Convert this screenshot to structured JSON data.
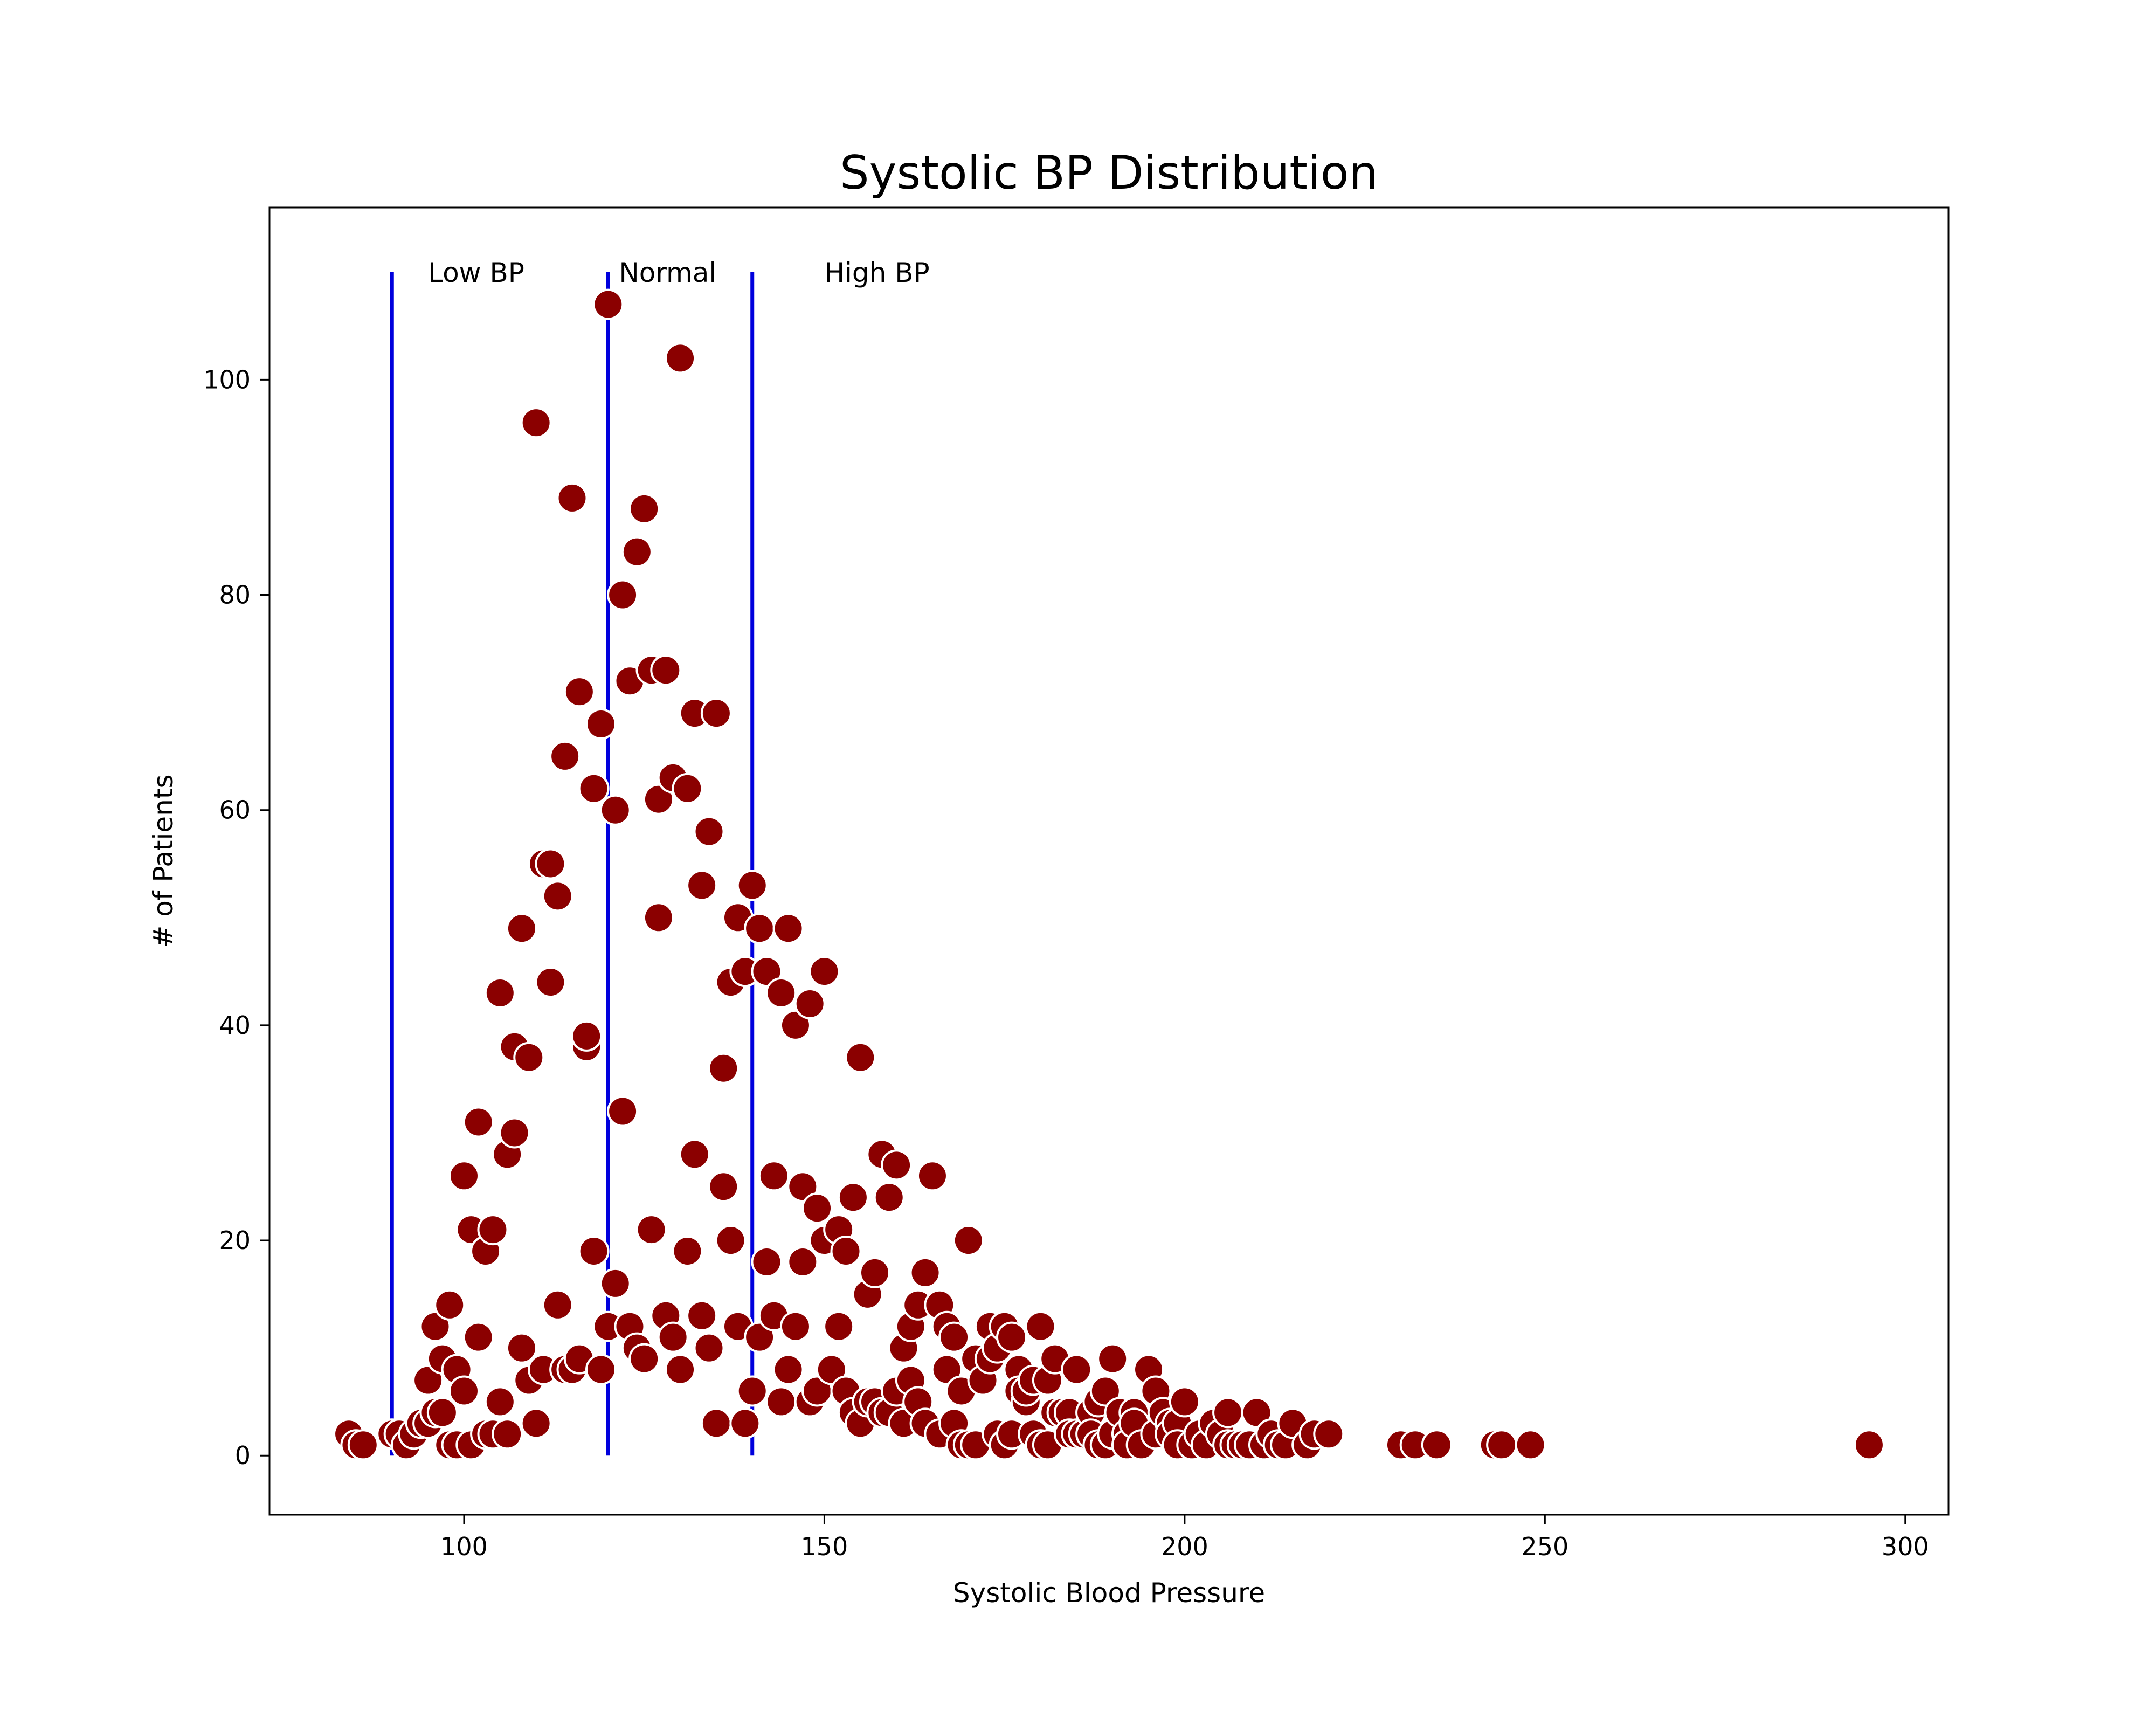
{
  "chart_data": {
    "type": "scatter",
    "title": "Systolic BP Distribution",
    "xlabel": "Systolic Blood Pressure",
    "ylabel": "# of Patients",
    "xlim": [
      73,
      306
    ],
    "ylim": [
      -5.5,
      116
    ],
    "xticks": [
      100,
      150,
      200,
      250,
      300
    ],
    "yticks": [
      0,
      20,
      40,
      60,
      80,
      100
    ],
    "grid": false,
    "colors": {
      "marker": "#8b0000",
      "marker_edge": "#ffffff",
      "vlines": "#0000dd",
      "axes": "#000000"
    },
    "vlines": [
      {
        "x": 90,
        "ymin": 0,
        "ymax": 110
      },
      {
        "x": 120,
        "ymin": 0,
        "ymax": 110
      },
      {
        "x": 140,
        "ymin": 0,
        "ymax": 110
      }
    ],
    "annotations": [
      {
        "text": "Low BP",
        "x": 95,
        "y": 110
      },
      {
        "text": "Normal",
        "x": 121.5,
        "y": 110
      },
      {
        "text": "High BP",
        "x": 150,
        "y": 110
      }
    ],
    "points": [
      [
        84,
        2
      ],
      [
        85,
        1
      ],
      [
        86,
        1
      ],
      [
        90,
        2
      ],
      [
        91,
        2
      ],
      [
        92,
        1
      ],
      [
        93,
        2
      ],
      [
        94,
        3
      ],
      [
        95,
        7
      ],
      [
        95,
        3
      ],
      [
        96,
        12
      ],
      [
        96,
        4
      ],
      [
        97,
        9
      ],
      [
        97,
        4
      ],
      [
        98,
        14
      ],
      [
        98,
        1
      ],
      [
        99,
        8
      ],
      [
        99,
        1
      ],
      [
        100,
        26
      ],
      [
        100,
        6
      ],
      [
        101,
        21
      ],
      [
        101,
        1
      ],
      [
        102,
        31
      ],
      [
        102,
        11
      ],
      [
        103,
        19
      ],
      [
        103,
        2
      ],
      [
        104,
        21
      ],
      [
        104,
        2
      ],
      [
        105,
        43
      ],
      [
        105,
        5
      ],
      [
        106,
        28
      ],
      [
        106,
        2
      ],
      [
        107,
        38
      ],
      [
        107,
        30
      ],
      [
        108,
        49
      ],
      [
        108,
        10
      ],
      [
        109,
        37
      ],
      [
        109,
        7
      ],
      [
        110,
        96
      ],
      [
        110,
        3
      ],
      [
        111,
        55
      ],
      [
        111,
        8
      ],
      [
        112,
        55
      ],
      [
        112,
        44
      ],
      [
        113,
        52
      ],
      [
        113,
        14
      ],
      [
        114,
        65
      ],
      [
        114,
        8
      ],
      [
        115,
        89
      ],
      [
        115,
        8
      ],
      [
        116,
        71
      ],
      [
        116,
        9
      ],
      [
        117,
        38
      ],
      [
        117,
        39
      ],
      [
        118,
        62
      ],
      [
        118,
        19
      ],
      [
        119,
        68
      ],
      [
        119,
        8
      ],
      [
        120,
        107
      ],
      [
        120,
        12
      ],
      [
        121,
        60
      ],
      [
        121,
        16
      ],
      [
        122,
        80
      ],
      [
        122,
        32
      ],
      [
        123,
        72
      ],
      [
        123,
        12
      ],
      [
        124,
        84
      ],
      [
        124,
        10
      ],
      [
        125,
        88
      ],
      [
        125,
        9
      ],
      [
        126,
        73
      ],
      [
        126,
        21
      ],
      [
        127,
        61
      ],
      [
        127,
        50
      ],
      [
        128,
        73
      ],
      [
        128,
        13
      ],
      [
        129,
        63
      ],
      [
        129,
        11
      ],
      [
        130,
        102
      ],
      [
        130,
        8
      ],
      [
        131,
        62
      ],
      [
        131,
        19
      ],
      [
        132,
        69
      ],
      [
        132,
        28
      ],
      [
        133,
        53
      ],
      [
        133,
        13
      ],
      [
        134,
        58
      ],
      [
        134,
        10
      ],
      [
        135,
        69
      ],
      [
        135,
        3
      ],
      [
        136,
        36
      ],
      [
        136,
        25
      ],
      [
        137,
        44
      ],
      [
        137,
        20
      ],
      [
        138,
        50
      ],
      [
        138,
        12
      ],
      [
        139,
        45
      ],
      [
        139,
        3
      ],
      [
        140,
        53
      ],
      [
        140,
        6
      ],
      [
        141,
        49
      ],
      [
        141,
        11
      ],
      [
        142,
        45
      ],
      [
        142,
        18
      ],
      [
        143,
        26
      ],
      [
        143,
        13
      ],
      [
        144,
        43
      ],
      [
        144,
        5
      ],
      [
        145,
        49
      ],
      [
        145,
        8
      ],
      [
        146,
        40
      ],
      [
        146,
        12
      ],
      [
        147,
        25
      ],
      [
        147,
        18
      ],
      [
        148,
        42
      ],
      [
        148,
        5
      ],
      [
        149,
        23
      ],
      [
        149,
        6
      ],
      [
        150,
        45
      ],
      [
        150,
        20
      ],
      [
        151,
        8
      ],
      [
        152,
        21
      ],
      [
        152,
        12
      ],
      [
        153,
        19
      ],
      [
        153,
        6
      ],
      [
        154,
        24
      ],
      [
        154,
        4
      ],
      [
        155,
        37
      ],
      [
        155,
        3
      ],
      [
        156,
        15
      ],
      [
        156,
        5
      ],
      [
        157,
        17
      ],
      [
        157,
        5
      ],
      [
        158,
        28
      ],
      [
        158,
        4
      ],
      [
        159,
        24
      ],
      [
        159,
        4
      ],
      [
        160,
        27
      ],
      [
        160,
        6
      ],
      [
        161,
        10
      ],
      [
        161,
        3
      ],
      [
        162,
        12
      ],
      [
        162,
        7
      ],
      [
        163,
        14
      ],
      [
        163,
        5
      ],
      [
        164,
        17
      ],
      [
        164,
        3
      ],
      [
        165,
        26
      ],
      [
        166,
        14
      ],
      [
        166,
        2
      ],
      [
        167,
        12
      ],
      [
        167,
        8
      ],
      [
        168,
        11
      ],
      [
        168,
        3
      ],
      [
        169,
        6
      ],
      [
        169,
        1
      ],
      [
        170,
        20
      ],
      [
        170,
        1
      ],
      [
        171,
        9
      ],
      [
        171,
        1
      ],
      [
        172,
        7
      ],
      [
        173,
        12
      ],
      [
        173,
        9
      ],
      [
        174,
        10
      ],
      [
        174,
        2
      ],
      [
        175,
        12
      ],
      [
        175,
        1
      ],
      [
        176,
        11
      ],
      [
        176,
        2
      ],
      [
        177,
        8
      ],
      [
        177,
        6
      ],
      [
        178,
        5
      ],
      [
        178,
        6
      ],
      [
        179,
        7
      ],
      [
        179,
        2
      ],
      [
        180,
        12
      ],
      [
        180,
        1
      ],
      [
        181,
        7
      ],
      [
        181,
        1
      ],
      [
        182,
        9
      ],
      [
        182,
        4
      ],
      [
        183,
        4
      ],
      [
        184,
        4
      ],
      [
        184,
        2
      ],
      [
        185,
        8
      ],
      [
        185,
        2
      ],
      [
        186,
        2
      ],
      [
        187,
        4
      ],
      [
        187,
        2
      ],
      [
        188,
        5
      ],
      [
        188,
        1
      ],
      [
        189,
        6
      ],
      [
        189,
        1
      ],
      [
        190,
        9
      ],
      [
        190,
        2
      ],
      [
        191,
        4
      ],
      [
        192,
        2
      ],
      [
        192,
        1
      ],
      [
        193,
        4
      ],
      [
        193,
        3
      ],
      [
        194,
        1
      ],
      [
        195,
        8
      ],
      [
        196,
        6
      ],
      [
        196,
        2
      ],
      [
        197,
        4
      ],
      [
        198,
        3
      ],
      [
        198,
        2
      ],
      [
        199,
        3
      ],
      [
        199,
        1
      ],
      [
        200,
        5
      ],
      [
        201,
        1
      ],
      [
        202,
        2
      ],
      [
        203,
        1
      ],
      [
        204,
        3
      ],
      [
        205,
        2
      ],
      [
        206,
        4
      ],
      [
        206,
        1
      ],
      [
        207,
        1
      ],
      [
        208,
        1
      ],
      [
        209,
        1
      ],
      [
        210,
        4
      ],
      [
        211,
        1
      ],
      [
        212,
        2
      ],
      [
        213,
        1
      ],
      [
        214,
        1
      ],
      [
        215,
        3
      ],
      [
        217,
        1
      ],
      [
        218,
        2
      ],
      [
        220,
        2
      ],
      [
        230,
        1
      ],
      [
        232,
        1
      ],
      [
        235,
        1
      ],
      [
        243,
        1
      ],
      [
        244,
        1
      ],
      [
        248,
        1
      ],
      [
        295,
        1
      ]
    ]
  }
}
